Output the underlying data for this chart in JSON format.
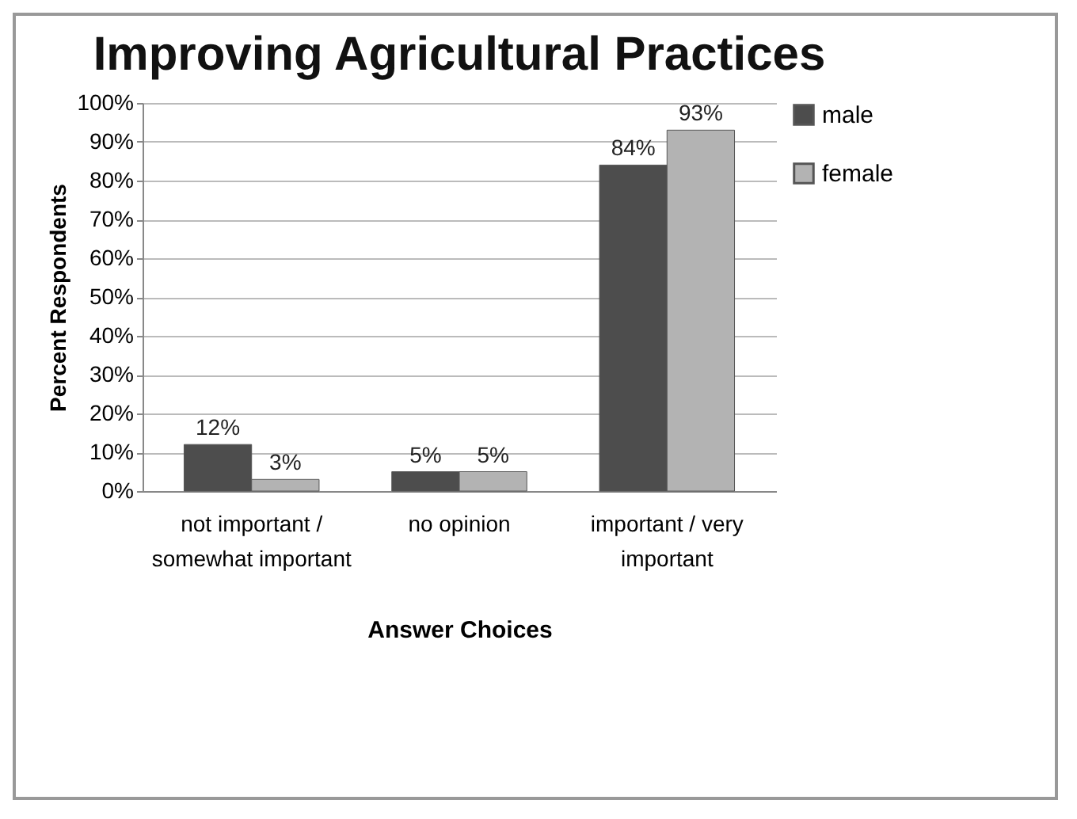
{
  "chart_data": {
    "type": "bar",
    "title": "Improving Agricultural Practices",
    "xlabel": "Answer Choices",
    "ylabel": "Percent Respondents",
    "categories": [
      "not important / somewhat important",
      "no opinion",
      "important / very important"
    ],
    "series": [
      {
        "name": "male",
        "color": "#4d4d4d",
        "values": [
          12,
          5,
          84
        ],
        "value_labels": [
          "12%",
          "5%",
          "84%"
        ]
      },
      {
        "name": "female",
        "color": "#b3b3b3",
        "values": [
          3,
          5,
          93
        ],
        "value_labels": [
          "3%",
          "5%",
          "93%"
        ]
      }
    ],
    "ylim": [
      0,
      100
    ],
    "yticks": [
      {
        "value": 0,
        "label": "0%"
      },
      {
        "value": 10,
        "label": "10%"
      },
      {
        "value": 20,
        "label": "20%"
      },
      {
        "value": 30,
        "label": "30%"
      },
      {
        "value": 40,
        "label": "40%"
      },
      {
        "value": 50,
        "label": "50%"
      },
      {
        "value": 60,
        "label": "60%"
      },
      {
        "value": 70,
        "label": "70%"
      },
      {
        "value": 80,
        "label": "80%"
      },
      {
        "value": 90,
        "label": "90%"
      },
      {
        "value": 100,
        "label": "100%"
      }
    ],
    "grid": "y",
    "legend": "right"
  }
}
